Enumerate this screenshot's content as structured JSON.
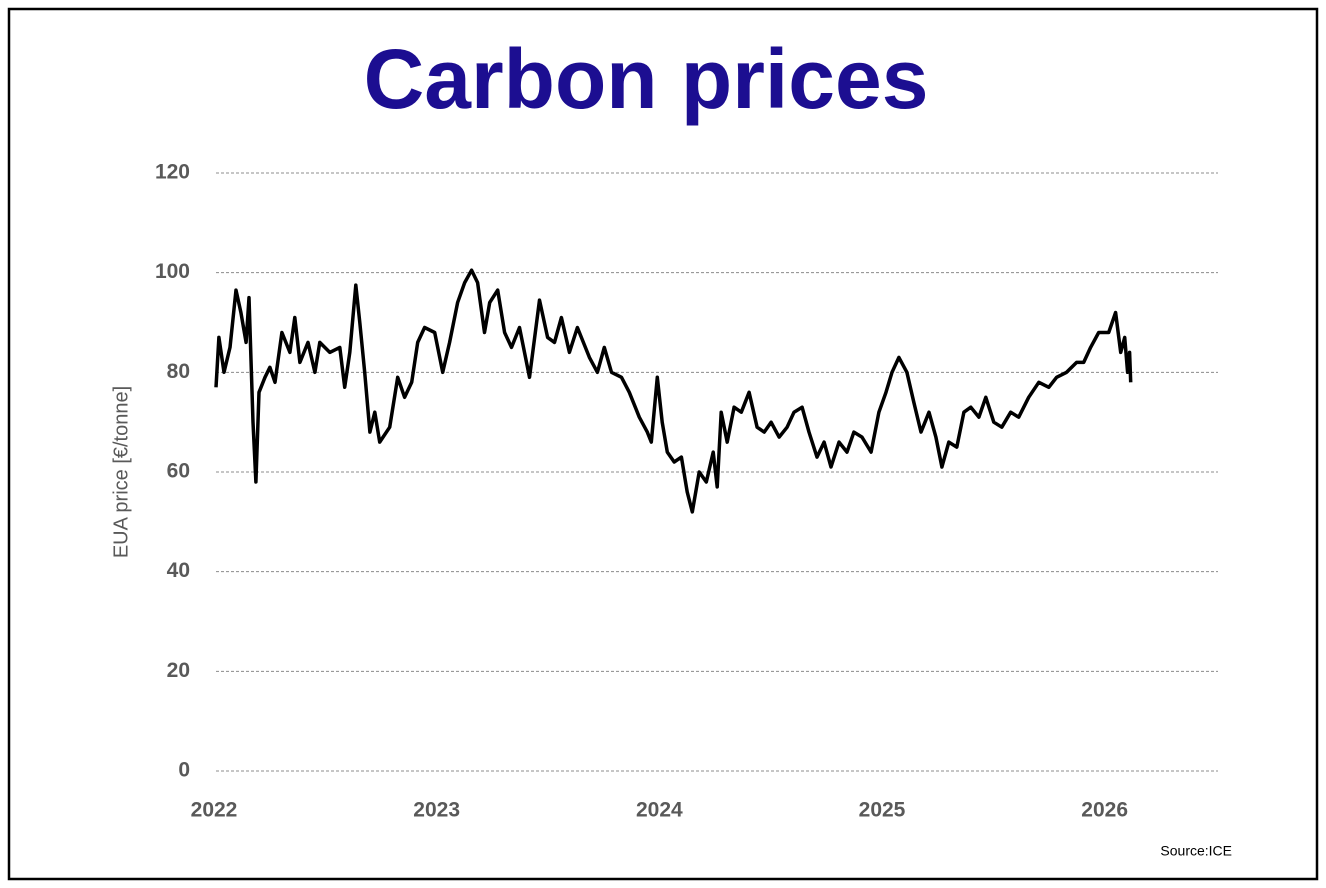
{
  "chart_data": {
    "type": "line",
    "title": "Carbon prices",
    "y_label": "EUA price [€/tonne]",
    "source": "Source:ICE",
    "x": [
      2022.0,
      2022.013,
      2022.036,
      2022.063,
      2022.09,
      2022.112,
      2022.135,
      2022.148,
      2022.166,
      2022.179,
      2022.193,
      2022.22,
      2022.242,
      2022.265,
      2022.296,
      2022.332,
      2022.354,
      2022.377,
      2022.413,
      2022.444,
      2022.466,
      2022.511,
      2022.556,
      2022.578,
      2022.601,
      2022.628,
      2022.646,
      2022.668,
      2022.691,
      2022.713,
      2022.735,
      2022.78,
      2022.816,
      2022.847,
      2022.879,
      2022.906,
      2022.937,
      2022.982,
      2023.018,
      2023.049,
      2023.085,
      2023.117,
      2023.148,
      2023.175,
      2023.206,
      2023.229,
      2023.265,
      2023.296,
      2023.327,
      2023.363,
      2023.408,
      2023.453,
      2023.489,
      2023.52,
      2023.551,
      2023.587,
      2023.623,
      2023.677,
      2023.713,
      2023.744,
      2023.776,
      2023.821,
      2023.856,
      2023.901,
      2023.937,
      2023.955,
      2023.982,
      2024.004,
      2024.027,
      2024.058,
      2024.09,
      2024.116,
      2024.139,
      2024.17,
      2024.202,
      2024.233,
      2024.251,
      2024.269,
      2024.296,
      2024.327,
      2024.359,
      2024.394,
      2024.43,
      2024.462,
      2024.493,
      2024.529,
      2024.565,
      2024.596,
      2024.632,
      2024.663,
      2024.699,
      2024.731,
      2024.762,
      2024.798,
      2024.834,
      2024.865,
      2024.901,
      2024.942,
      2024.977,
      2025.009,
      2025.036,
      2025.067,
      2025.103,
      2025.134,
      2025.166,
      2025.202,
      2025.233,
      2025.26,
      2025.291,
      2025.327,
      2025.359,
      2025.39,
      2025.426,
      2025.457,
      2025.493,
      2025.529,
      2025.569,
      2025.605,
      2025.65,
      2025.695,
      2025.74,
      2025.775,
      2025.82,
      2025.865,
      2025.897,
      2025.928,
      2025.964,
      2026.009,
      2026.04,
      2026.063,
      2026.081,
      2026.094,
      2026.103,
      2026.108
    ],
    "values": [
      77,
      87,
      80,
      85,
      96.5,
      92,
      86,
      95,
      70,
      58,
      76,
      79,
      81,
      78,
      88,
      84,
      91,
      82,
      86,
      80,
      86,
      84,
      85,
      77,
      84,
      97.5,
      90,
      80,
      68,
      72,
      66,
      69,
      79,
      75,
      78,
      86,
      89,
      88,
      80,
      86,
      94,
      98,
      100.5,
      98,
      88,
      94,
      96.5,
      88,
      85,
      89,
      79,
      94.5,
      87,
      86,
      91,
      84,
      89,
      83,
      80,
      85,
      80,
      79,
      76,
      71,
      68,
      66,
      79,
      70,
      64,
      62,
      63,
      56,
      52,
      60,
      58,
      64,
      57,
      72,
      66,
      73,
      72,
      76,
      69,
      68,
      70,
      67,
      69,
      72,
      73,
      68,
      63,
      66,
      61,
      66,
      64,
      68,
      67,
      64,
      72,
      76,
      80,
      83,
      80,
      74,
      68,
      72,
      67,
      61,
      66,
      65,
      72,
      73,
      71,
      75,
      70,
      69,
      72,
      71,
      75,
      78,
      77,
      79,
      80,
      82,
      82,
      85,
      88,
      88,
      92,
      84,
      87,
      80,
      84,
      78
    ],
    "color": "#000000",
    "xlim": [
      2022,
      2026.5
    ],
    "xticks": [
      2022,
      2023,
      2024,
      2025,
      2026
    ],
    "ylim": [
      0,
      120
    ],
    "yticks": [
      0,
      20,
      40,
      60,
      80,
      100,
      120
    ],
    "grid": true
  }
}
